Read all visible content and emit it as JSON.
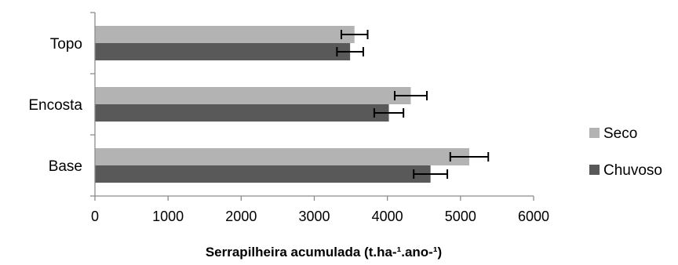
{
  "chart_data": {
    "type": "bar",
    "orientation": "horizontal",
    "categories": [
      "Topo",
      "Encosta",
      "Base"
    ],
    "series": [
      {
        "name": "Seco",
        "color": "#b3b3b3",
        "values": [
          3550,
          4320,
          5120
        ],
        "errors": [
          180,
          220,
          260
        ]
      },
      {
        "name": "Chuvoso",
        "color": "#595959",
        "values": [
          3490,
          4020,
          4590
        ],
        "errors": [
          180,
          200,
          230
        ]
      }
    ],
    "xlabel": "Serrapilheira  acumulada (t.ha-¹.ano-¹)",
    "xlim": [
      0,
      6000
    ],
    "xticks": [
      0,
      1000,
      2000,
      3000,
      4000,
      5000,
      6000
    ],
    "grid": false,
    "legend_position": "right"
  }
}
